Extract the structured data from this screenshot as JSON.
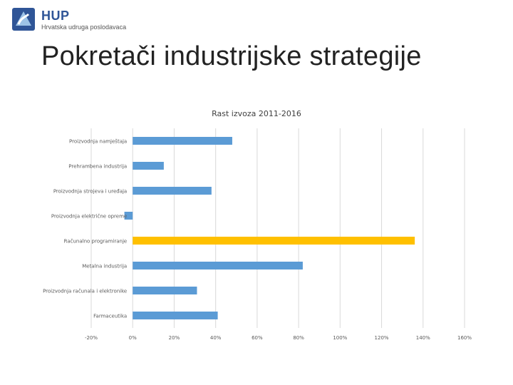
{
  "header": {
    "logo_name": "HUP",
    "logo_subtitle": "Hrvatska udruga poslodavaca",
    "slide_title": "Pokretači industrijske strategije"
  },
  "colors": {
    "bar_default": "#5b9bd5",
    "bar_highlight": "#ffc000",
    "grid": "#d9d9d9"
  },
  "chart_data": {
    "type": "bar",
    "orientation": "horizontal",
    "title": "Rast izvoza 2011-2016",
    "xlabel": "",
    "ylabel": "",
    "categories": [
      "Proizvodnja namještaja",
      "Prehrambena industrija",
      "Proizvodnja strojeva i uređaja",
      "Proizvodnja električne opreme",
      "Računalno programiranje",
      "Metalna industrija",
      "Proizvodnja računala i elektronike",
      "Farmaceutika"
    ],
    "values": [
      48,
      15,
      38,
      -4,
      136,
      82,
      31,
      41
    ],
    "highlight_index": 4,
    "xlim": [
      -20,
      160
    ],
    "xticks": [
      -20,
      0,
      20,
      40,
      60,
      80,
      100,
      120,
      140,
      160
    ],
    "xtick_labels": [
      "-20%",
      "0%",
      "20%",
      "40%",
      "60%",
      "80%",
      "100%",
      "120%",
      "140%",
      "160%"
    ],
    "grid": true,
    "legend": "none"
  }
}
